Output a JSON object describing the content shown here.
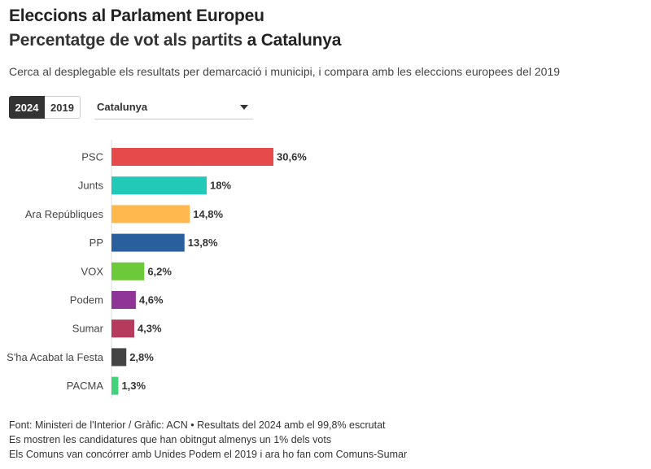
{
  "header": {
    "title": "Eleccions al Parlament Europeu",
    "subtitle_prefix": "Percentatge de vot als partits ",
    "subtitle_bold": "a Catalunya",
    "description": "Cerca al desplegable els resultats per demarcació i municipi, i compara amb les eleccions europees del 2019"
  },
  "controls": {
    "year_options": [
      "2024",
      "2019"
    ],
    "selected_year": "2024",
    "region_selected": "Catalunya"
  },
  "chart_data": {
    "type": "bar",
    "orientation": "horizontal",
    "categories": [
      "PSC",
      "Junts",
      "Ara Repúbliques",
      "PP",
      "VOX",
      "Podem",
      "Sumar",
      "S'ha Acabat la Festa",
      "PACMA"
    ],
    "values": [
      30.6,
      18,
      14.8,
      13.8,
      6.2,
      4.6,
      4.3,
      2.8,
      1.3
    ],
    "labels": [
      "30,6%",
      "18%",
      "14,8%",
      "13,8%",
      "6,2%",
      "4,6%",
      "4,3%",
      "2,8%",
      "1,3%"
    ],
    "colors": [
      "#e64a4a",
      "#22c9b8",
      "#ffb84d",
      "#2a5f9e",
      "#6cc93a",
      "#8e3597",
      "#b53a5c",
      "#444444",
      "#45d07c"
    ],
    "xlim": [
      0,
      30.6
    ],
    "title": "",
    "xlabel": "",
    "ylabel": ""
  },
  "footer": {
    "line1": "Font: Ministeri de l'Interior / Gràfic: ACN • Resultats del 2024 amb el 99,8% escrutat",
    "line2": "Es mostren les candidatures que han obitngut almenys un 1% dels vots",
    "line3": "Els Comuns van concórrer amb Unides Podem el 2019 i ara ho fan com Comuns-Sumar"
  }
}
